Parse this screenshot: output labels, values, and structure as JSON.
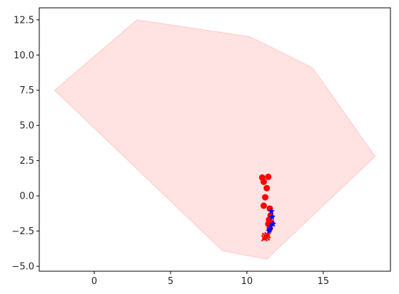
{
  "chart_data": {
    "type": "scatter",
    "title": "",
    "xlabel": "",
    "ylabel": "",
    "xlim": [
      -3.6,
      19.4
    ],
    "ylim": [
      -5.35,
      13.35
    ],
    "grid": false,
    "legend": "none",
    "x_ticks": [
      0,
      5,
      10,
      15
    ],
    "x_tick_labels": [
      "0",
      "5",
      "10",
      "15"
    ],
    "y_ticks": [
      -5.0,
      -2.5,
      0.0,
      2.5,
      5.0,
      7.5,
      10.0,
      12.5
    ],
    "y_tick_labels": [
      "−5.0",
      "−2.5",
      "0.0",
      "2.5",
      "5.0",
      "7.5",
      "10.0",
      "12.5"
    ],
    "hull": {
      "fill": "#ffb3b3",
      "points": [
        [
          -2.6,
          7.5
        ],
        [
          2.8,
          12.5
        ],
        [
          10.2,
          11.3
        ],
        [
          14.3,
          9.1
        ],
        [
          18.4,
          2.8
        ],
        [
          11.3,
          -4.5
        ],
        [
          8.4,
          -3.9
        ]
      ]
    },
    "series": [
      {
        "marker": "circle",
        "color": "#ff0000",
        "points": [
          [
            11.0,
            1.3
          ],
          [
            11.4,
            1.35
          ],
          [
            11.1,
            1.0
          ],
          [
            11.3,
            0.55
          ],
          [
            11.2,
            -0.1
          ],
          [
            11.1,
            -0.7
          ],
          [
            11.5,
            -0.9
          ],
          [
            11.55,
            -1.4
          ],
          [
            11.45,
            -1.7
          ],
          [
            11.6,
            -1.9
          ],
          [
            11.4,
            -2.0
          ],
          [
            11.5,
            -2.3
          ]
        ]
      },
      {
        "marker": "star",
        "color": "#0000ff",
        "points": [
          [
            11.6,
            -1.1
          ],
          [
            11.65,
            -1.5
          ],
          [
            11.7,
            -2.0
          ],
          [
            11.55,
            -2.15
          ],
          [
            11.5,
            -2.4
          ],
          [
            11.45,
            -2.5
          ]
        ]
      },
      {
        "marker": "x",
        "color": "#ff0000",
        "points": [
          [
            11.2,
            -2.85
          ],
          [
            11.3,
            -2.95
          ],
          [
            11.15,
            -3.0
          ],
          [
            11.35,
            -2.8
          ]
        ]
      }
    ]
  }
}
